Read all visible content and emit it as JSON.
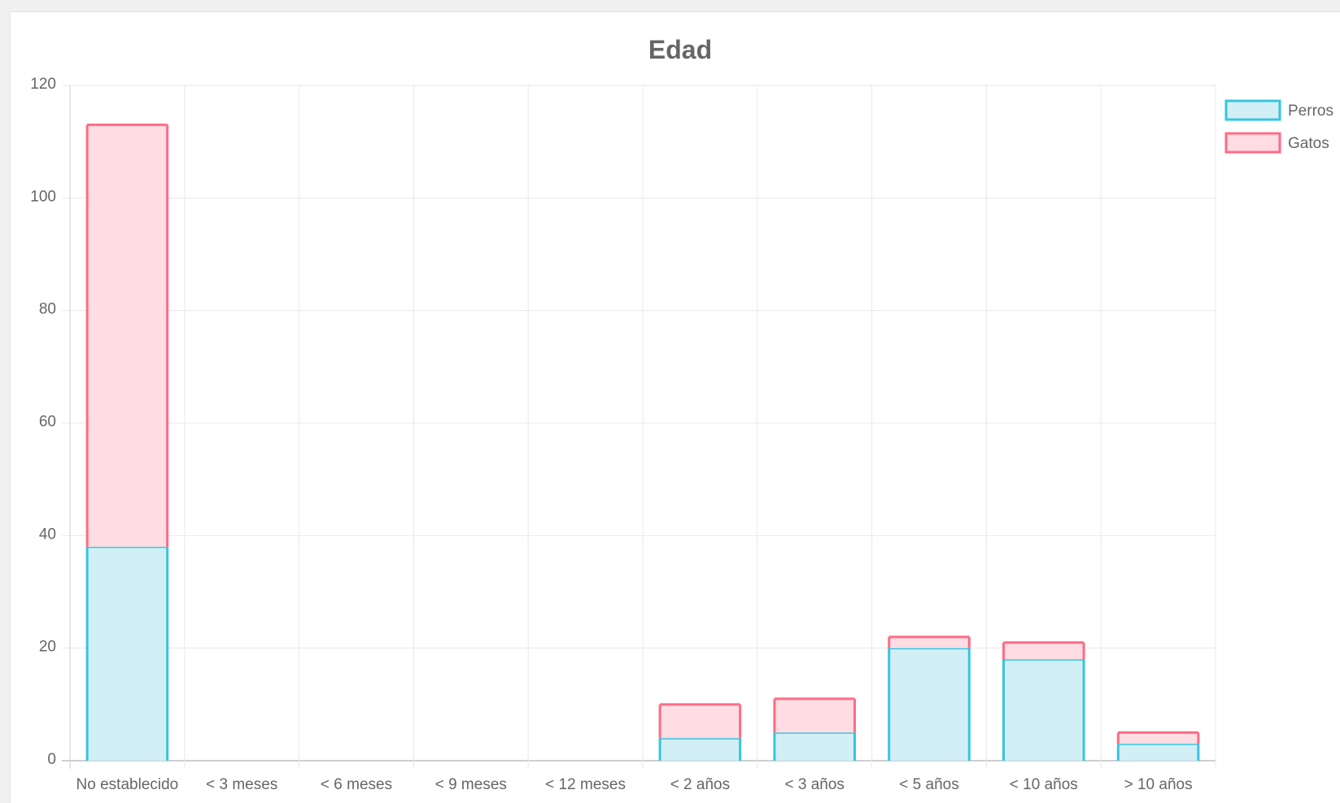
{
  "chart_data": {
    "type": "bar",
    "stacked": true,
    "title": "Edad",
    "categories": [
      "No establecido",
      "< 3 meses",
      "< 6 meses",
      "< 9 meses",
      "< 12 meses",
      "< 2 años",
      "< 3 años",
      "< 5 años",
      "< 10 años",
      "> 10 años"
    ],
    "series": [
      {
        "name": "Perros",
        "values": [
          38,
          0,
          0,
          0,
          0,
          4,
          5,
          20,
          18,
          3
        ],
        "stroke": "#36C5E0",
        "fill": "#D2EFF5"
      },
      {
        "name": "Gatos",
        "values": [
          75,
          0,
          0,
          0,
          0,
          6,
          6,
          2,
          3,
          2
        ],
        "stroke": "#FF6B84",
        "fill": "#FFDDE3"
      }
    ],
    "ylim": [
      0,
      120
    ],
    "yticks": [
      "0",
      "20",
      "40",
      "60",
      "80",
      "100",
      "120"
    ],
    "grid": true,
    "legend_position": "right"
  }
}
